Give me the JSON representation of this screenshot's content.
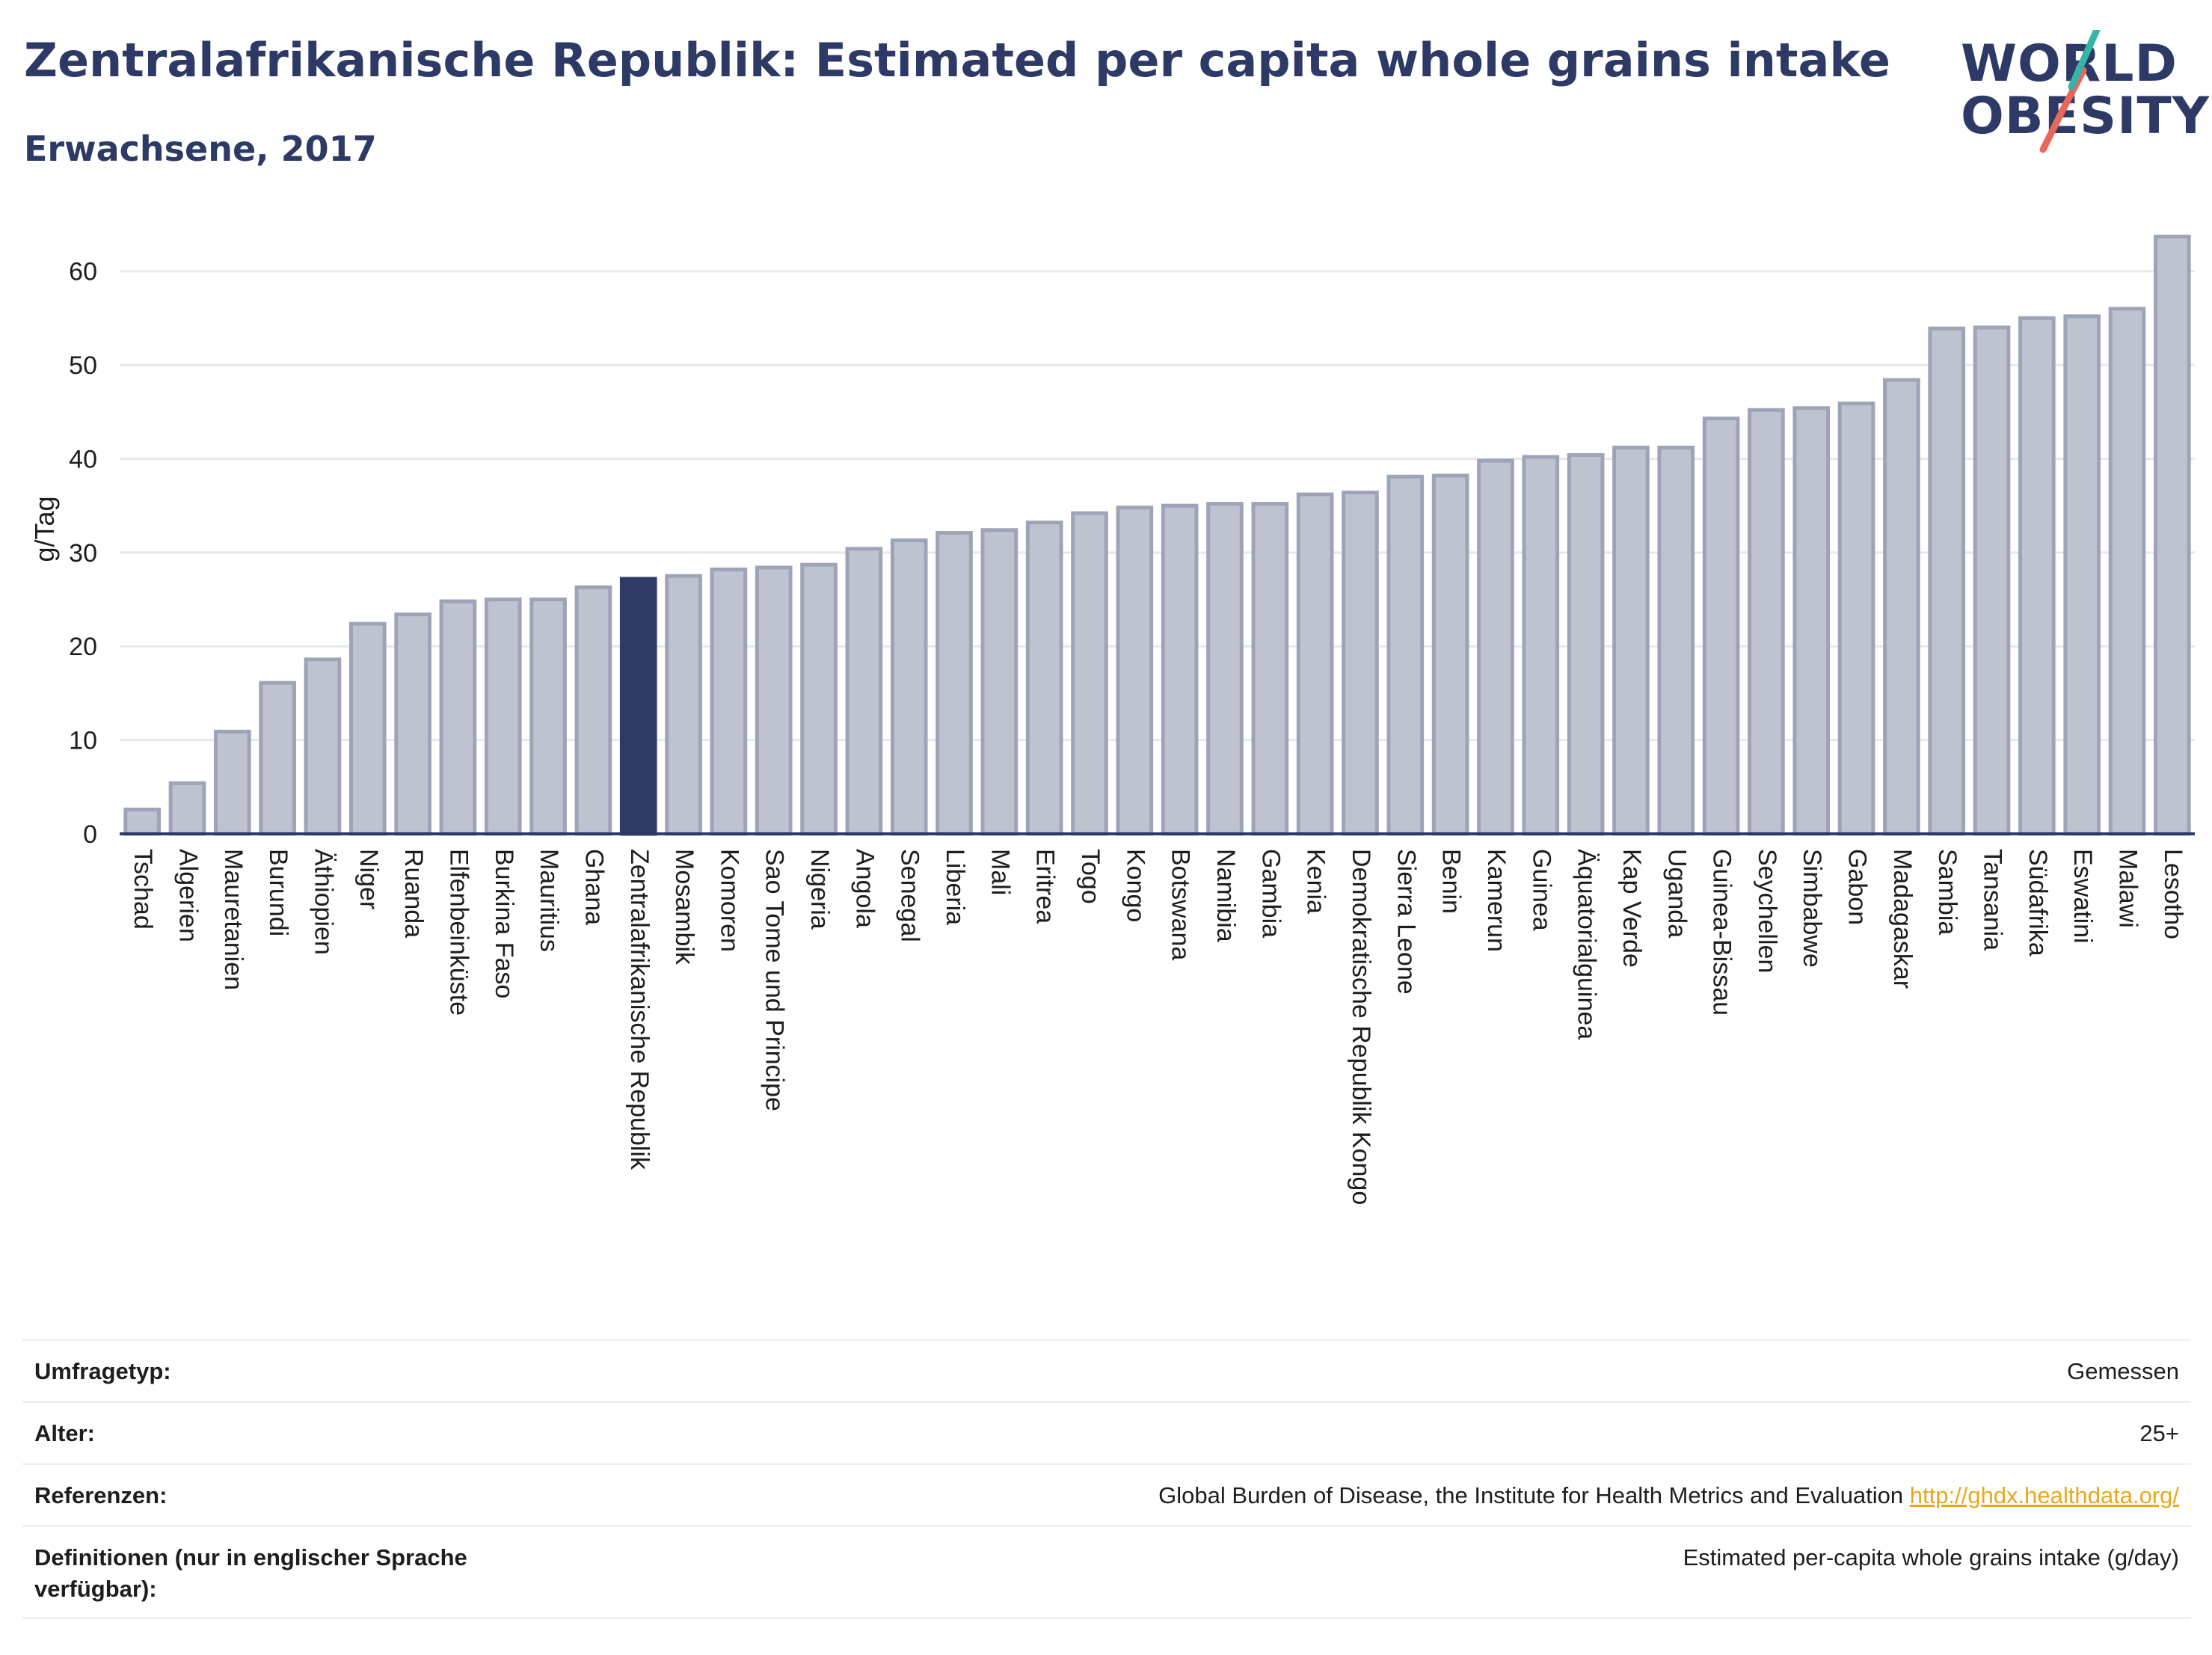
{
  "header": {
    "title": "Zentralafrikanische Republik: Estimated per capita whole grains intake",
    "subtitle": "Erwachsene, 2017"
  },
  "logo": {
    "line1": "WORLD",
    "line2": "OBESITY",
    "accent_colors": [
      "#35b5a6",
      "#e8665a"
    ]
  },
  "colors": {
    "bar": "#bfc3d0",
    "bar_border": "#9ea4b8",
    "highlight": "#2d3a66",
    "grid": "#e6e8ee",
    "axis_text": "#1d1d1d"
  },
  "chart_data": {
    "type": "bar",
    "ylabel": "g/Tag",
    "xlabel": "",
    "ylim": [
      0,
      65
    ],
    "yticks": [
      0,
      10,
      20,
      30,
      40,
      50,
      60
    ],
    "grid": true,
    "highlight": "Zentralafrikanische Republik",
    "categories": [
      "Tschad",
      "Algerien",
      "Mauretanien",
      "Burundi",
      "Äthiopien",
      "Niger",
      "Ruanda",
      "Elfenbeinküste",
      "Burkina Faso",
      "Mauritius",
      "Ghana",
      "Zentralafrikanische Republik",
      "Mosambik",
      "Komoren",
      "Sao Tome und Principe",
      "Nigeria",
      "Angola",
      "Senegal",
      "Liberia",
      "Mali",
      "Eritrea",
      "Togo",
      "Kongo",
      "Botswana",
      "Namibia",
      "Gambia",
      "Kenia",
      "Demokratische Republik Kongo",
      "Sierra Leone",
      "Benin",
      "Kamerun",
      "Guinea",
      "Äquatorialguinea",
      "Kap Verde",
      "Uganda",
      "Guinea-Bissau",
      "Seychellen",
      "Simbabwe",
      "Gabon",
      "Madagaskar",
      "Sambia",
      "Tansania",
      "Südafrika",
      "Eswatini",
      "Malawi",
      "Lesotho"
    ],
    "values": [
      2.6,
      5.4,
      10.9,
      16.1,
      18.6,
      22.4,
      23.4,
      24.8,
      25.0,
      25.0,
      26.3,
      27.2,
      27.5,
      28.2,
      28.4,
      28.7,
      30.4,
      31.3,
      32.1,
      32.4,
      33.2,
      34.2,
      34.8,
      35.0,
      35.2,
      35.2,
      36.2,
      36.4,
      38.1,
      38.2,
      39.8,
      40.2,
      40.4,
      41.2,
      41.2,
      44.3,
      45.2,
      45.4,
      45.9,
      48.4,
      53.9,
      54.0,
      55.0,
      55.2,
      56.0,
      63.7
    ]
  },
  "footer": {
    "rows": [
      {
        "label": "Umfragetyp:",
        "value": "Gemessen"
      },
      {
        "label": "Alter:",
        "value": "25+"
      },
      {
        "label": "Referenzen:",
        "value": "Global Burden of Disease, the Institute for Health Metrics and Evaluation",
        "link": "http://ghdx.healthdata.org/"
      },
      {
        "label": "Definitionen (nur in englischer Sprache verfügbar):",
        "value": "Estimated per-capita whole grains intake (g/day)"
      }
    ]
  }
}
